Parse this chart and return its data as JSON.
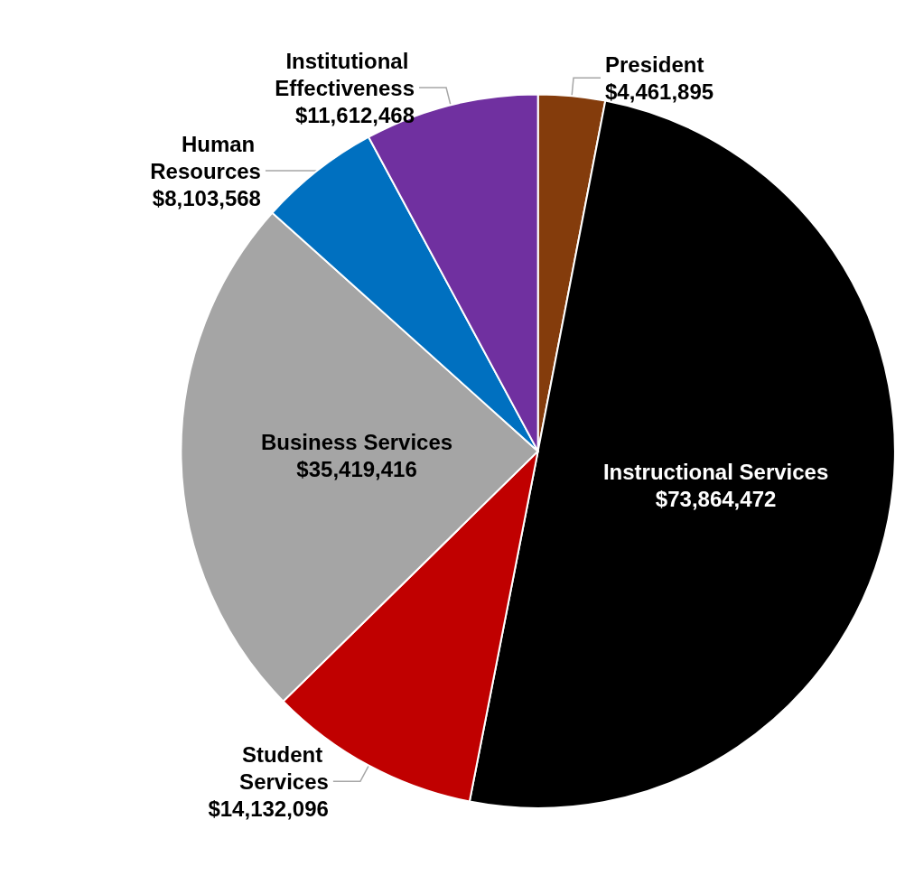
{
  "chart_data": {
    "type": "pie",
    "categories": [
      "President",
      "Instructional Services",
      "Student Services",
      "Business Services",
      "Human Resources",
      "Institutional Effectiveness"
    ],
    "values": [
      4461895,
      73864472,
      14132096,
      35419416,
      8103568,
      11612468
    ],
    "value_labels": [
      "$4,461,895",
      "$73,864,472",
      "$14,132,096",
      "$35,419,416",
      "$8,103,568",
      "$11,612,468"
    ],
    "colors": [
      "#843c0c",
      "#000000",
      "#c00000",
      "#a5a5a5",
      "#0070c0",
      "#7030a0"
    ],
    "legend": false
  }
}
